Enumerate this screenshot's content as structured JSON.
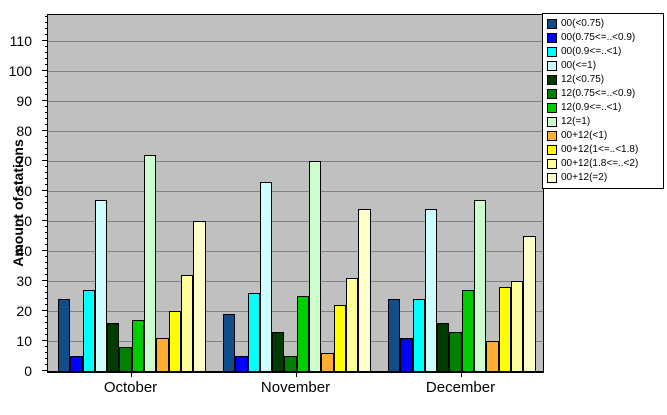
{
  "chart_data": {
    "type": "bar",
    "title": "",
    "xlabel": "",
    "ylabel": "Amount of stations",
    "categories": [
      "October",
      "November",
      "December"
    ],
    "series": [
      {
        "name": "00(<0.75)",
        "color": "#114C8C",
        "values": [
          24,
          19,
          24
        ]
      },
      {
        "name": "00(0.75<=..<0.9)",
        "color": "#0000FF",
        "values": [
          5,
          5,
          11
        ]
      },
      {
        "name": "00(0.9<=..<1)",
        "color": "#00FFFF",
        "values": [
          27,
          26,
          24
        ]
      },
      {
        "name": "00(<=1)",
        "color": "#CCFFFF",
        "values": [
          57,
          63,
          54
        ]
      },
      {
        "name": "12(<0.75)",
        "color": "#003C00",
        "values": [
          16,
          13,
          16
        ]
      },
      {
        "name": "12(0.75<=..<0.9)",
        "color": "#008000",
        "values": [
          8,
          5,
          13
        ]
      },
      {
        "name": "12(0.9<=..<1)",
        "color": "#00CC00",
        "values": [
          17,
          25,
          27
        ]
      },
      {
        "name": "12(=1)",
        "color": "#CCFFCC",
        "values": [
          72,
          70,
          57
        ]
      },
      {
        "name": "00+12(<1)",
        "color": "#FFAD33",
        "values": [
          11,
          6,
          10
        ]
      },
      {
        "name": "00+12(1<=..<1.8)",
        "color": "#FFFF00",
        "values": [
          20,
          22,
          28
        ]
      },
      {
        "name": "00+12(1.8<=..<2)",
        "color": "#FFFF99",
        "values": [
          32,
          31,
          30
        ]
      },
      {
        "name": "00+12(=2)",
        "color": "#FFFFCC",
        "values": [
          50,
          54,
          45
        ]
      }
    ],
    "y_ticks": [
      0,
      10,
      20,
      30,
      40,
      50,
      60,
      70,
      80,
      90,
      100,
      110
    ],
    "ylim": [
      0,
      118.7
    ],
    "grid": true,
    "gridline_color": "#808080",
    "plot_background": "#C0C0C0",
    "legend_position": "right"
  }
}
